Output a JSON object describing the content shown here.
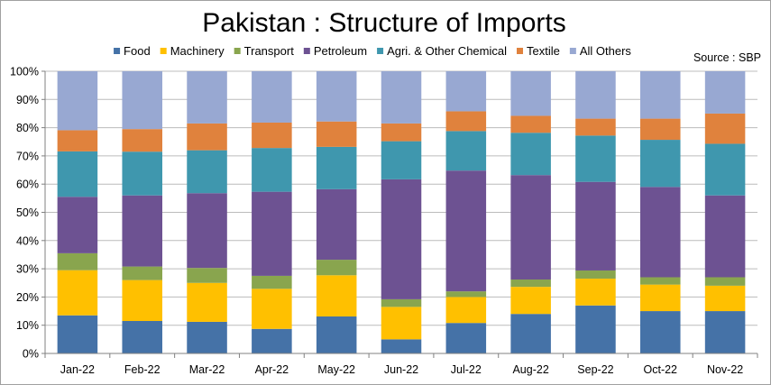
{
  "chart_data": {
    "type": "bar",
    "stacked": true,
    "title": "Pakistan : Structure of Imports",
    "source": "Source : SBP",
    "xlabel": "",
    "ylabel": "",
    "ylim": [
      0,
      100
    ],
    "y_ticks": [
      "0%",
      "10%",
      "20%",
      "30%",
      "40%",
      "50%",
      "60%",
      "70%",
      "80%",
      "90%",
      "100%"
    ],
    "grid": true,
    "legend_position": "top",
    "categories": [
      "Jan-22",
      "Feb-22",
      "Mar-22",
      "Apr-22",
      "May-22",
      "Jun-22",
      "Jul-22",
      "Aug-22",
      "Sep-22",
      "Oct-22",
      "Nov-22"
    ],
    "series": [
      {
        "name": "Food",
        "color": "#4572A7",
        "values": [
          13.5,
          11.5,
          11.2,
          8.7,
          13.1,
          5.0,
          10.8,
          14.0,
          17.0,
          15.0,
          15.0
        ]
      },
      {
        "name": "Machinery",
        "color": "#FFC000",
        "values": [
          16.0,
          14.5,
          13.8,
          14.2,
          14.6,
          11.5,
          9.2,
          9.6,
          9.5,
          9.4,
          9.0
        ]
      },
      {
        "name": "Transport",
        "color": "#89A54E",
        "values": [
          6.0,
          4.8,
          5.3,
          4.6,
          5.5,
          2.7,
          2.0,
          2.6,
          2.9,
          2.6,
          3.0
        ]
      },
      {
        "name": "Petroleum",
        "color": "#6D5292",
        "values": [
          20.0,
          25.2,
          26.5,
          29.8,
          25.0,
          42.5,
          42.8,
          37.0,
          31.4,
          32.0,
          29.0
        ]
      },
      {
        "name": "Agri. & Other Chemical",
        "color": "#3F97AE",
        "values": [
          16.1,
          15.5,
          15.2,
          15.5,
          15.0,
          13.5,
          14.0,
          15.0,
          16.4,
          16.7,
          18.3
        ]
      },
      {
        "name": "Textile",
        "color": "#E0823D",
        "values": [
          7.5,
          8.0,
          9.5,
          9.0,
          9.0,
          6.3,
          7.0,
          6.0,
          6.0,
          7.5,
          10.7
        ]
      },
      {
        "name": "All Others",
        "color": "#98A8D2",
        "values": [
          20.9,
          20.5,
          18.5,
          18.2,
          17.8,
          18.5,
          14.2,
          15.8,
          16.8,
          16.8,
          15.0
        ]
      }
    ]
  }
}
